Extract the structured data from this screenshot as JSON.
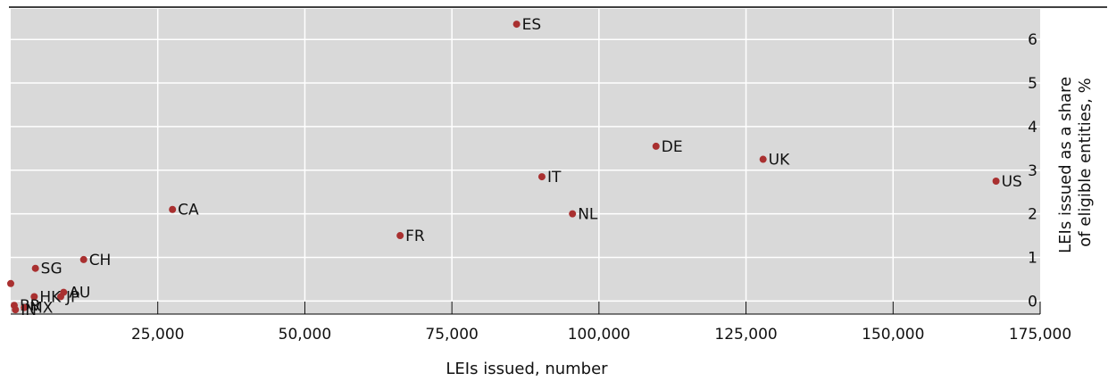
{
  "chart_data": {
    "type": "scatter",
    "title": "",
    "xlabel": "LEIs issued, number",
    "ylabel_lines": [
      "LEIs issued as a share",
      "of eligible entities, %"
    ],
    "xlim": [
      0,
      175000
    ],
    "ylim": [
      -0.3,
      6.7
    ],
    "x_ticks": [
      25000,
      50000,
      75000,
      100000,
      125000,
      150000,
      175000
    ],
    "x_tick_labels": [
      "25,000",
      "50,000",
      "75,000",
      "100,000",
      "125,000",
      "150,000",
      "175,000"
    ],
    "y_ticks": [
      0,
      1,
      2,
      3,
      4,
      5,
      6
    ],
    "y_tick_labels": [
      "0",
      "1",
      "2",
      "3",
      "4",
      "5",
      "6"
    ],
    "grid": true,
    "point_color": "#a93030",
    "background_color": "#d9d9d9",
    "points": [
      {
        "label": "ES",
        "x": 86000,
        "y": 6.35
      },
      {
        "label": "DE",
        "x": 109700,
        "y": 3.55
      },
      {
        "label": "UK",
        "x": 127900,
        "y": 3.25
      },
      {
        "label": "IT",
        "x": 90300,
        "y": 2.85
      },
      {
        "label": "US",
        "x": 167500,
        "y": 2.75
      },
      {
        "label": "CA",
        "x": 27500,
        "y": 2.1
      },
      {
        "label": "NL",
        "x": 95500,
        "y": 2.0
      },
      {
        "label": "FR",
        "x": 66200,
        "y": 1.5
      },
      {
        "label": "CH",
        "x": 12400,
        "y": 0.95
      },
      {
        "label": "SG",
        "x": 4200,
        "y": 0.75
      },
      {
        "label": "AU",
        "x": 9000,
        "y": 0.2
      },
      {
        "label": "JP",
        "x": 8500,
        "y": 0.1
      },
      {
        "label": "HK",
        "x": 4000,
        "y": 0.1
      },
      {
        "label": "",
        "x": 0,
        "y": 0.4
      },
      {
        "label": "BR",
        "x": 600,
        "y": -0.1
      },
      {
        "label": "MX",
        "x": 2300,
        "y": -0.15
      },
      {
        "label": "IN",
        "x": 800,
        "y": -0.2
      }
    ]
  }
}
